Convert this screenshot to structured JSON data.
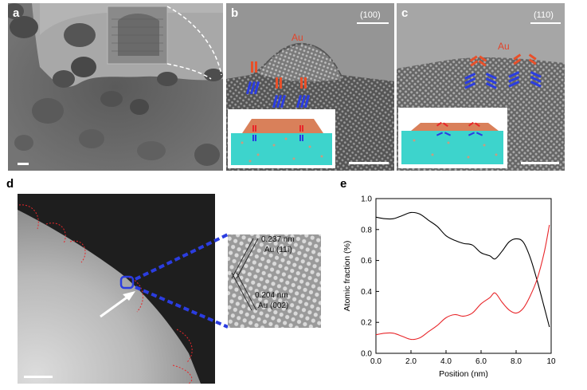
{
  "panels": {
    "a": {
      "label": "a"
    },
    "b": {
      "label": "b",
      "facet": "(100)",
      "element": "Au"
    },
    "c": {
      "label": "c",
      "facet": "(110)",
      "element": "Au"
    },
    "d": {
      "label": "d",
      "d1": "0.237 nm",
      "d1_plane": "Au (11ī)",
      "d2": "0.204 nm",
      "d2_plane": "Au (002)"
    },
    "e": {
      "label": "e"
    }
  },
  "chart_data": {
    "type": "line",
    "xlabel": "Position (nm)",
    "ylabel": "Atomic fraction (%)",
    "xlim": [
      0,
      10
    ],
    "ylim": [
      0,
      1.0
    ],
    "xticks": [
      "0.0",
      "2.0",
      "4.0",
      "6.0",
      "8.0",
      "10"
    ],
    "yticks": [
      "0.0",
      "0.2",
      "0.4",
      "0.6",
      "0.8",
      "1.0"
    ],
    "series": [
      {
        "name": "black",
        "color": "#000000",
        "x": [
          0,
          0.5,
          1.0,
          1.5,
          2.0,
          2.5,
          3.0,
          3.5,
          4.0,
          4.5,
          5.0,
          5.5,
          6.0,
          6.5,
          6.8,
          7.2,
          7.6,
          8.0,
          8.4,
          8.8,
          9.2,
          9.6,
          9.9
        ],
        "y": [
          0.88,
          0.87,
          0.87,
          0.89,
          0.91,
          0.9,
          0.86,
          0.82,
          0.76,
          0.73,
          0.71,
          0.7,
          0.65,
          0.63,
          0.61,
          0.66,
          0.72,
          0.74,
          0.72,
          0.62,
          0.47,
          0.3,
          0.17
        ]
      },
      {
        "name": "red",
        "color": "#e8262a",
        "x": [
          0,
          0.5,
          1.0,
          1.5,
          2.0,
          2.5,
          3.0,
          3.5,
          4.0,
          4.5,
          5.0,
          5.5,
          6.0,
          6.5,
          6.8,
          7.2,
          7.6,
          8.0,
          8.4,
          8.8,
          9.2,
          9.6,
          9.9
        ],
        "y": [
          0.12,
          0.13,
          0.13,
          0.11,
          0.09,
          0.1,
          0.14,
          0.18,
          0.23,
          0.25,
          0.24,
          0.26,
          0.32,
          0.36,
          0.39,
          0.33,
          0.28,
          0.26,
          0.29,
          0.37,
          0.48,
          0.65,
          0.83
        ]
      }
    ]
  }
}
